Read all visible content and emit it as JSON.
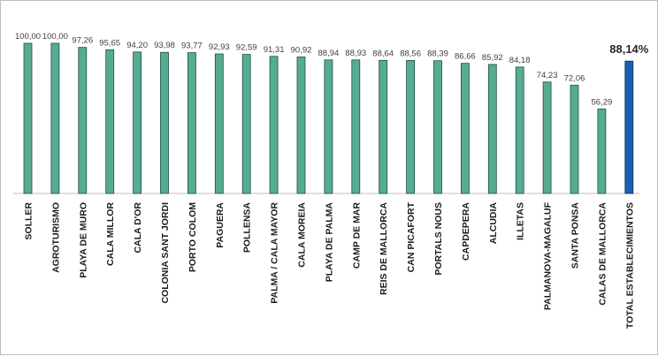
{
  "chart_data": {
    "type": "bar",
    "categories": [
      "SOLLER",
      "AGROTURISMO",
      "PLAYA DE MURO",
      "CALA MILLOR",
      "CALA D'OR",
      "COLONIA SANT JORDI",
      "PORTO COLOM",
      "PAGUERA",
      "POLLENSA",
      "PALMA / CALA MAYOR",
      "CALA MOREIA",
      "PLAYA DE PALMA",
      "CAMP DE MAR",
      "REIS DE MALLORCA",
      "CAN PICAFORT",
      "PORTALS NOUS",
      "CAPDEPERA",
      "ALCUDIA",
      "ILLETAS",
      "PALMANOVA-MAGALUF",
      "SANTA PONSA",
      "CALAS DE MALLORCA",
      "TOTAL ESTABLECIMIENTOS"
    ],
    "values": [
      100.0,
      100.0,
      97.26,
      95.65,
      94.2,
      93.98,
      93.77,
      92.93,
      92.59,
      91.31,
      90.92,
      88.94,
      88.93,
      88.64,
      88.56,
      88.39,
      86.66,
      85.92,
      84.18,
      74.23,
      72.06,
      56.29,
      88.14
    ],
    "data_labels": [
      "100,00",
      "100,00",
      "97,26",
      "95,65",
      "94,20",
      "93,98",
      "93,77",
      "92,93",
      "92,59",
      "91,31",
      "90,92",
      "88,94",
      "88,93",
      "88,64",
      "88,56",
      "88,39",
      "86,66",
      "85,92",
      "84,18",
      "74,23",
      "72,06",
      "56,29",
      "88,14%"
    ],
    "highlight_index": 22,
    "ylim": [
      0,
      100
    ],
    "grid": false,
    "legend": "none",
    "title": "",
    "xlabel": "",
    "ylabel": "",
    "colors": {
      "bar": "#56ab93",
      "bar_stroke": "#1f4e44",
      "highlight": "#1a5fb4",
      "highlight_stroke": "#0d2f5a",
      "axis": "#bfbfbf"
    }
  }
}
